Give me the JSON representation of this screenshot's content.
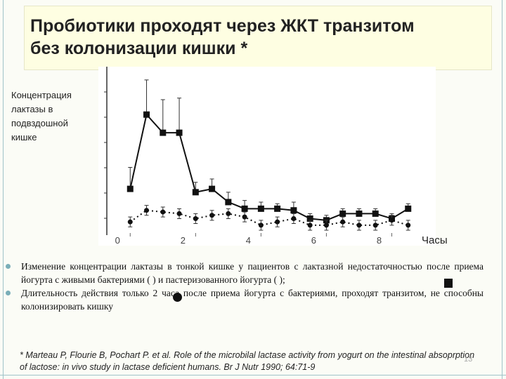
{
  "slide": {
    "title_lines": [
      "Пробиотики проходят через ЖКТ транзитом",
      "без колонизации кишки *"
    ],
    "bullets": [
      "Изменение концентрации лактазы в тонкой кишке у пациентов с лактазной недостаточностью после приема йогурта с живыми бактериями ( ) и пастеризованного йогурта ( );",
      "Длительность действия только 2 часа после приема йогурта с бактериями, проходят транзитом, не способны колонизировать кишку"
    ],
    "footnote": "* Marteau P, Flourie B, Pochart P. et al. Role of the microbilal lactase activity from yogurt on the intestinal absoprption of lactose: in vivo study in lactase deficient humans. Br J Nutr 1990; 64:71-9",
    "page_number": "13"
  },
  "chart_data": {
    "type": "line",
    "y_label_lines": [
      "Концентрация",
      "лактазы в",
      "подвздошной",
      "кишке"
    ],
    "x_label": "Часы",
    "x": [
      0,
      0.5,
      1,
      1.5,
      2,
      2.5,
      3,
      3.5,
      4,
      4.5,
      5,
      5.5,
      6,
      6.5,
      7,
      7.5,
      8,
      8.5
    ],
    "xlim": [
      -0.5,
      9
    ],
    "xticks": [
      0,
      2,
      4,
      6,
      8
    ],
    "ylim": [
      -0.2,
      10
    ],
    "series": [
      {
        "color": "#111111",
        "marker": "square",
        "line_style": "solid",
        "values": [
          2.6,
          7.1,
          6.0,
          6.0,
          2.4,
          2.6,
          1.8,
          1.4,
          1.4,
          1.4,
          1.3,
          0.8,
          0.7,
          1.1,
          1.1,
          1.1,
          0.8,
          1.4
        ],
        "errors": [
          1.3,
          2.1,
          2.0,
          2.1,
          0.6,
          0.6,
          0.6,
          0.5,
          0.4,
          0.3,
          0.5,
          0.3,
          0.3,
          0.3,
          0.3,
          0.3,
          0.3,
          0.3
        ],
        "error_style": "upper"
      },
      {
        "color": "#111111",
        "marker": "circle",
        "line_style": "dotted",
        "values": [
          0.6,
          1.3,
          1.2,
          1.1,
          0.8,
          1.0,
          1.1,
          0.9,
          0.4,
          0.6,
          0.8,
          0.4,
          0.4,
          0.6,
          0.4,
          0.4,
          0.7,
          0.4
        ],
        "errors": [
          0.3,
          0.3,
          0.3,
          0.3,
          0.3,
          0.3,
          0.3,
          0.3,
          0.3,
          0.3,
          0.3,
          0.3,
          0.3,
          0.3,
          0.3,
          0.3,
          0.3,
          0.3
        ],
        "error_style": "both"
      }
    ]
  }
}
